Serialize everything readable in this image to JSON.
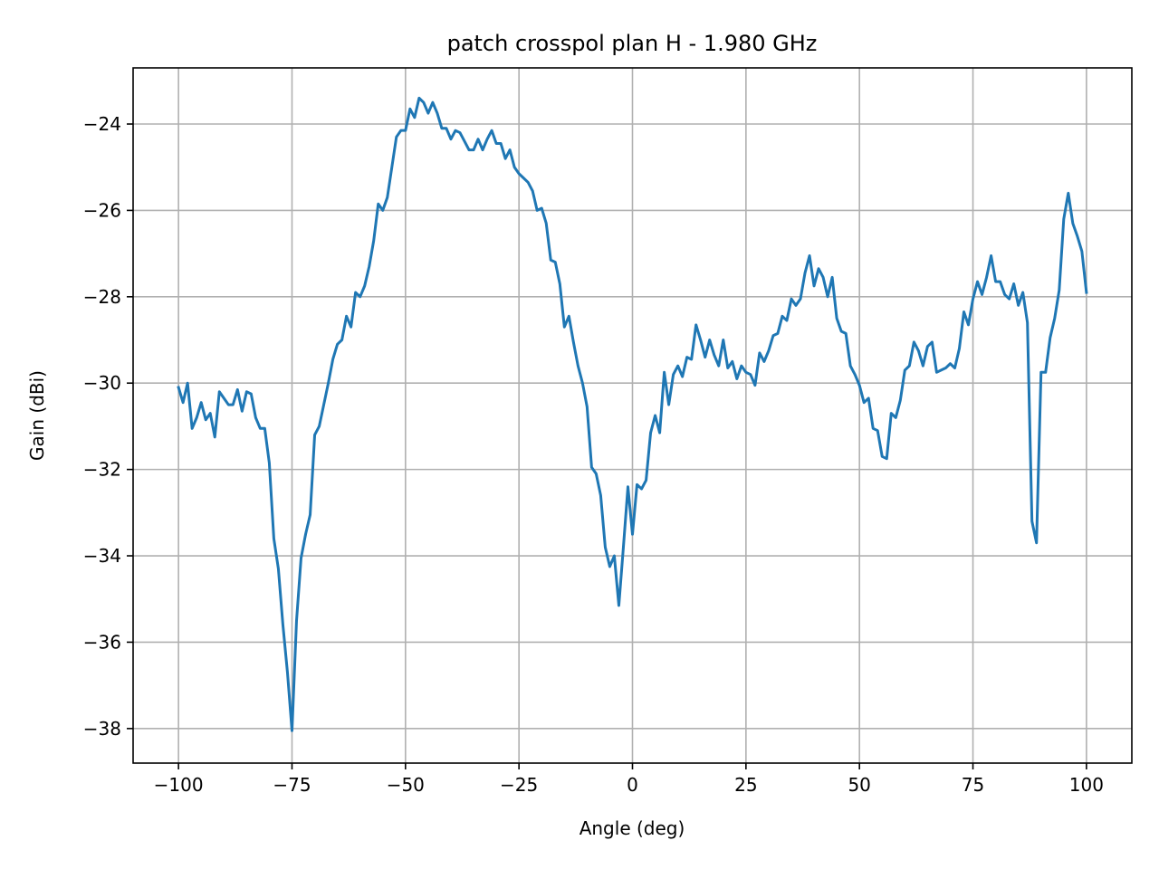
{
  "chart_data": {
    "type": "line",
    "title": "patch crosspol plan H - 1.980 GHz",
    "xlabel": "Angle (deg)",
    "ylabel": "Gain (dBi)",
    "xlim": [
      -110,
      110
    ],
    "ylim": [
      -38.8,
      -22.7
    ],
    "grid": true,
    "line_color": "#1f77b4",
    "x_ticks": [
      -100,
      -75,
      -50,
      -25,
      0,
      25,
      50,
      75,
      100
    ],
    "x_tick_labels": [
      "−100",
      "−75",
      "−50",
      "−25",
      "0",
      "25",
      "50",
      "75",
      "100"
    ],
    "y_ticks": [
      -38,
      -36,
      -34,
      -32,
      -30,
      -28,
      -26,
      -24
    ],
    "y_tick_labels": [
      "−38",
      "−36",
      "−34",
      "−32",
      "−30",
      "−28",
      "−26",
      "−24"
    ],
    "series": [
      {
        "x": [
          -100,
          -99,
          -98,
          -97,
          -96,
          -95,
          -94,
          -93,
          -92,
          -91,
          -90,
          -89,
          -88,
          -87,
          -86,
          -85,
          -84,
          -83,
          -82,
          -81,
          -80,
          -79,
          -78,
          -77,
          -76,
          -75,
          -74,
          -73,
          -72,
          -71,
          -70,
          -69,
          -68,
          -67,
          -66,
          -65,
          -64,
          -63,
          -62,
          -61,
          -60,
          -59,
          -58,
          -57,
          -56,
          -55,
          -54,
          -53,
          -52,
          -51,
          -50,
          -49,
          -48,
          -47,
          -46,
          -45,
          -44,
          -43,
          -42,
          -41,
          -40,
          -39,
          -38,
          -37,
          -36,
          -35,
          -34,
          -33,
          -32,
          -31,
          -30,
          -29,
          -28,
          -27,
          -26,
          -25,
          -24,
          -23,
          -22,
          -21,
          -20,
          -19,
          -18,
          -17,
          -16,
          -15,
          -14,
          -13,
          -12,
          -11,
          -10,
          -9,
          -8,
          -7,
          -6,
          -5,
          -4,
          -3,
          -2,
          -1,
          0,
          1,
          2,
          3,
          4,
          5,
          6,
          7,
          8,
          9,
          10,
          11,
          12,
          13,
          14,
          15,
          16,
          17,
          18,
          19,
          20,
          21,
          22,
          23,
          24,
          25,
          26,
          27,
          28,
          29,
          30,
          31,
          32,
          33,
          34,
          35,
          36,
          37,
          38,
          39,
          40,
          41,
          42,
          43,
          44,
          45,
          46,
          47,
          48,
          49,
          50,
          51,
          52,
          53,
          54,
          55,
          56,
          57,
          58,
          59,
          60,
          61,
          62,
          63,
          64,
          65,
          66,
          67,
          68,
          69,
          70,
          71,
          72,
          73,
          74,
          75,
          76,
          77,
          78,
          79,
          80,
          81,
          82,
          83,
          84,
          85,
          86,
          87,
          88,
          89,
          90,
          91,
          92,
          93,
          94,
          95,
          96,
          97,
          98,
          99,
          100
        ],
        "values": [
          -30.1,
          -30.45,
          -30.0,
          -31.05,
          -30.8,
          -30.45,
          -30.85,
          -30.7,
          -31.25,
          -30.2,
          -30.35,
          -30.5,
          -30.5,
          -30.15,
          -30.65,
          -30.2,
          -30.25,
          -30.8,
          -31.05,
          -31.05,
          -31.85,
          -33.6,
          -34.3,
          -35.6,
          -36.7,
          -38.05,
          -35.5,
          -34.05,
          -33.5,
          -33.05,
          -31.2,
          -31.0,
          -30.5,
          -30.0,
          -29.45,
          -29.1,
          -29.0,
          -28.45,
          -28.7,
          -27.9,
          -28.0,
          -27.75,
          -27.3,
          -26.7,
          -25.85,
          -26.0,
          -25.7,
          -25.0,
          -24.3,
          -24.15,
          -24.15,
          -23.65,
          -23.85,
          -23.4,
          -23.5,
          -23.75,
          -23.5,
          -23.75,
          -24.1,
          -24.1,
          -24.35,
          -24.15,
          -24.2,
          -24.4,
          -24.6,
          -24.6,
          -24.35,
          -24.6,
          -24.35,
          -24.15,
          -24.45,
          -24.45,
          -24.8,
          -24.6,
          -25.0,
          -25.15,
          -25.25,
          -25.35,
          -25.55,
          -26.0,
          -25.95,
          -26.3,
          -27.15,
          -27.2,
          -27.7,
          -28.7,
          -28.45,
          -29.05,
          -29.6,
          -30.0,
          -30.55,
          -31.95,
          -32.1,
          -32.6,
          -33.8,
          -34.25,
          -34.0,
          -35.15,
          -33.8,
          -32.4,
          -33.5,
          -32.35,
          -32.45,
          -32.25,
          -31.15,
          -30.75,
          -31.15,
          -29.75,
          -30.5,
          -29.8,
          -29.6,
          -29.85,
          -29.4,
          -29.45,
          -28.65,
          -29.0,
          -29.4,
          -29.0,
          -29.35,
          -29.6,
          -29.0,
          -29.65,
          -29.5,
          -29.9,
          -29.6,
          -29.75,
          -29.8,
          -30.05,
          -29.3,
          -29.5,
          -29.25,
          -28.9,
          -28.85,
          -28.45,
          -28.55,
          -28.05,
          -28.2,
          -28.05,
          -27.45,
          -27.05,
          -27.75,
          -27.35,
          -27.55,
          -28.0,
          -27.55,
          -28.5,
          -28.8,
          -28.85,
          -29.6,
          -29.8,
          -30.05,
          -30.45,
          -30.35,
          -31.05,
          -31.1,
          -31.7,
          -31.75,
          -30.7,
          -30.8,
          -30.4,
          -29.7,
          -29.6,
          -29.05,
          -29.25,
          -29.6,
          -29.15,
          -29.05,
          -29.75,
          -29.7,
          -29.65,
          -29.55,
          -29.65,
          -29.2,
          -28.35,
          -28.65,
          -28.05,
          -27.65,
          -27.95,
          -27.55,
          -27.05,
          -27.65,
          -27.65,
          -27.95,
          -28.05,
          -27.7,
          -28.2,
          -27.9,
          -28.6,
          -33.2,
          -33.7,
          -29.75,
          -29.75,
          -28.95,
          -28.5,
          -27.85,
          -26.2,
          -25.6,
          -26.3,
          -26.6,
          -26.95,
          -27.9
        ]
      }
    ]
  }
}
